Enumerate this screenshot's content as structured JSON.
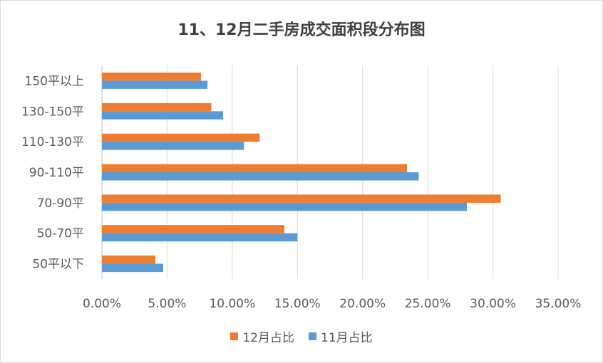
{
  "chart_data": {
    "type": "bar",
    "orientation": "horizontal",
    "title": "11、12月二手房成交面积段分布图",
    "categories": [
      "50平以下",
      "50-70平",
      "70-90平",
      "90-110平",
      "110-130平",
      "130-150平",
      "150平以上"
    ],
    "series": [
      {
        "name": "12月占比",
        "color": "#ED7D31",
        "values": [
          4.1,
          14.0,
          30.6,
          23.4,
          12.1,
          8.4,
          7.6
        ]
      },
      {
        "name": "11月占比",
        "color": "#5B9BD5",
        "values": [
          4.7,
          15.0,
          28.0,
          24.3,
          10.9,
          9.3,
          8.1
        ]
      }
    ],
    "xlim": [
      0,
      35
    ],
    "x_ticks": [
      "0.00%",
      "5.00%",
      "10.00%",
      "15.00%",
      "20.00%",
      "25.00%",
      "30.00%",
      "35.00%"
    ],
    "xlabel": "",
    "ylabel": "",
    "grid": "vertical",
    "legend": "bottom"
  }
}
